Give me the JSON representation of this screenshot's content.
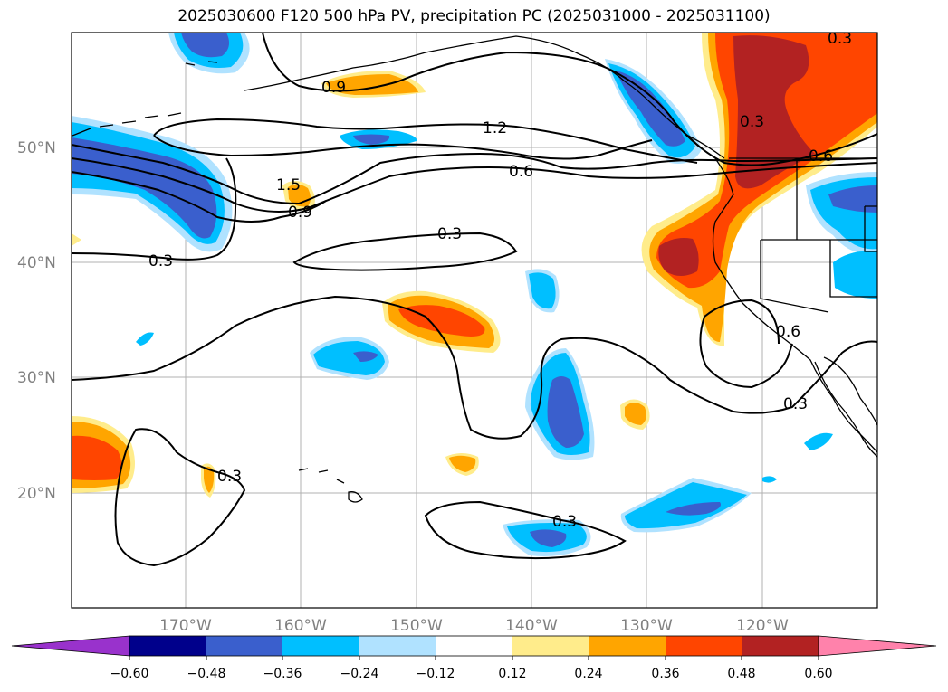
{
  "title": "2025030600 F120 500 hPa PV, precipitation PC (2025031000 - 2025031100)",
  "map": {
    "lat_labels": [
      "50°N",
      "40°N",
      "30°N",
      "20°N"
    ],
    "lon_labels": [
      "170°W",
      "160°W",
      "150°W",
      "140°W",
      "130°W",
      "120°W"
    ],
    "gridlines": true,
    "contour_color": "#000000",
    "coastline_color": "#000000",
    "contour_labels": [
      "0.9",
      "1.2",
      "0.6",
      "1.5",
      "0.9",
      "0.3",
      "0.3",
      "0.3",
      "0.6",
      "0.3",
      "0.3",
      "0.3",
      "0.6",
      "0.3"
    ]
  },
  "colorbar": {
    "ticks": [
      "−0.60",
      "−0.48",
      "−0.36",
      "−0.24",
      "−0.12",
      "0.12",
      "0.24",
      "0.36",
      "0.48",
      "0.60"
    ],
    "colors": {
      "lt_-0.60": "#9932cc",
      "-0.60_-0.48": "#00008b",
      "-0.48_-0.36": "#3a5fcd",
      "-0.36_-0.24": "#00bfff",
      "-0.24_-0.12": "#b0e2ff",
      "-0.12_0.12": "#ffffff",
      "0.12_0.24": "#ffec8b",
      "0.24_0.36": "#ffa500",
      "0.36_0.48": "#ff4500",
      "0.48_0.60": "#b22222",
      "gt_0.60": "#ff82ab"
    }
  }
}
